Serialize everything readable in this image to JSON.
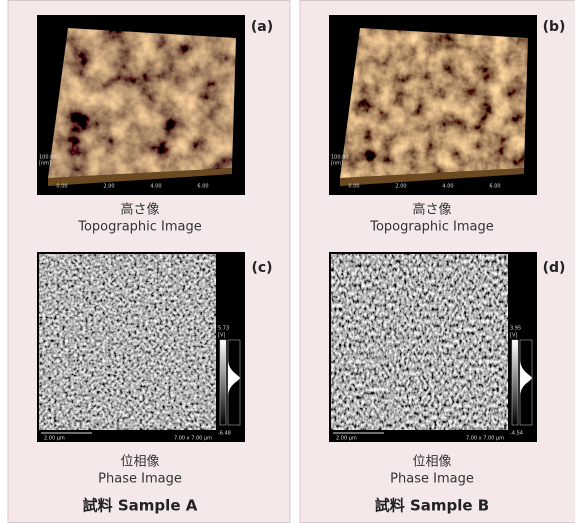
{
  "panels": [
    {
      "sample": "試料  Sample A",
      "topography": {
        "label": "(a)",
        "caption_ja": "高さ像",
        "caption_en": "Topographic Image",
        "z_scale": "100.00",
        "z_unit": "[nm]",
        "x_ticks": [
          "0.00",
          "2.00",
          "4.00",
          "6.00"
        ]
      },
      "phase": {
        "label": "(c)",
        "caption_ja": "位相像",
        "caption_en": "Phase Image",
        "scale_max": "5.73",
        "scale_unit": "[V]",
        "scale_min": "-6.48",
        "scale_bar": "2.00 μm",
        "scan_size": "7.00 x 7.00 μm"
      }
    },
    {
      "sample": "試料  Sample B",
      "topography": {
        "label": "(b)",
        "caption_ja": "高さ像",
        "caption_en": "Topographic Image",
        "z_scale": "100.00",
        "z_unit": "[nm]",
        "x_ticks": [
          "0.00",
          "2.00",
          "4.00",
          "6.00"
        ]
      },
      "phase": {
        "label": "(d)",
        "caption_ja": "位相像",
        "caption_en": "Phase Image",
        "scale_max": "3.95",
        "scale_unit": "[V]",
        "scale_min": "-4.54",
        "scale_bar": "2.00 μm",
        "scan_size": "7.00 x 7.00 μm"
      }
    }
  ]
}
